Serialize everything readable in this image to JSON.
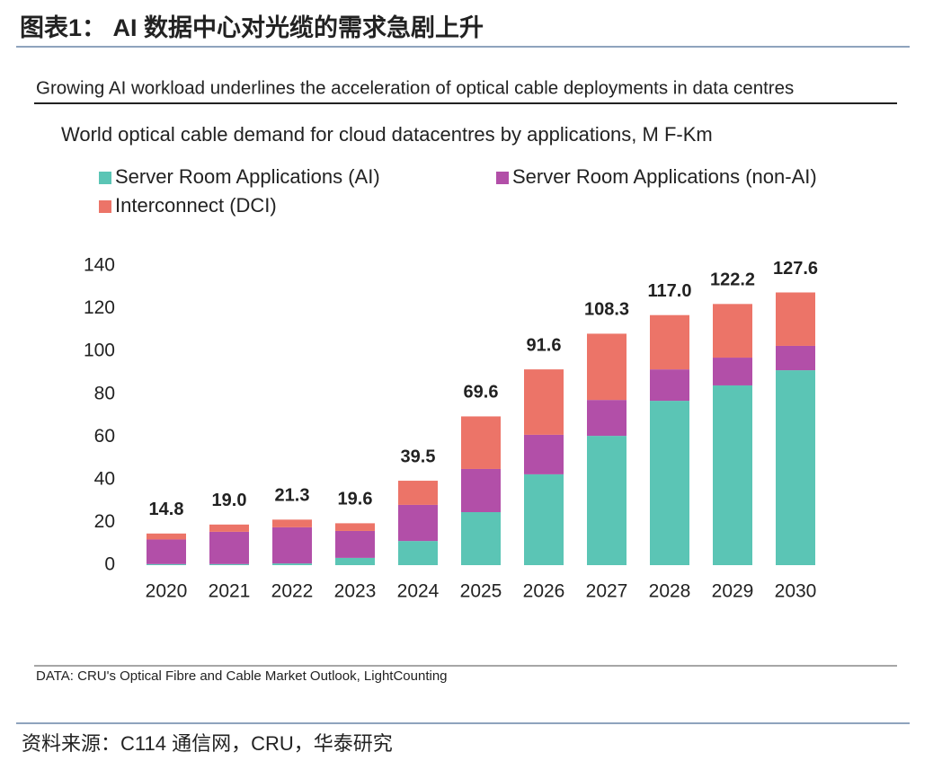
{
  "header": {
    "title": "图表1：  AI 数据中心对光缆的需求急剧上升"
  },
  "chart_data": {
    "type": "bar",
    "stacked": true,
    "headline": "Growing AI workload underlines the acceleration of optical cable deployments in data centres",
    "title": "World optical cable demand for cloud datacentres by applications, M F-Km",
    "categories": [
      "2020",
      "2021",
      "2022",
      "2023",
      "2024",
      "2025",
      "2026",
      "2027",
      "2028",
      "2029",
      "2030"
    ],
    "series": [
      {
        "name": "Server Room Applications (AI)",
        "color": "#5bc5b5",
        "values": [
          0.5,
          0.5,
          0.8,
          3.4,
          11.3,
          24.8,
          42.5,
          60.5,
          76.9,
          84.1,
          91.2
        ]
      },
      {
        "name": "Server Room Applications (non-AI)",
        "color": "#b24fa8",
        "values": [
          11.5,
          15.1,
          16.9,
          12.6,
          16.9,
          20.2,
          18.5,
          16.8,
          14.7,
          13.0,
          11.4
        ]
      },
      {
        "name": "Interconnect (DCI)",
        "color": "#ec7468",
        "values": [
          2.8,
          3.4,
          3.6,
          3.6,
          11.3,
          24.6,
          30.6,
          31.0,
          25.4,
          25.1,
          25.0
        ]
      }
    ],
    "totals": [
      14.8,
      19.0,
      21.3,
      19.6,
      39.5,
      69.6,
      91.6,
      108.3,
      117.0,
      122.2,
      127.6
    ],
    "total_labels": [
      "14.8",
      "19.0",
      "21.3",
      "19.6",
      "39.5",
      "69.6",
      "91.6",
      "108.3",
      "117.0",
      "122.2",
      "127.6"
    ],
    "ylim": [
      0,
      140
    ],
    "yticks": [
      0,
      20,
      40,
      60,
      80,
      100,
      120,
      140
    ],
    "grid": false,
    "source": "DATA: CRU's Optical Fibre and Cable Market Outlook, LightCounting"
  },
  "footer": {
    "source": "资料来源：C114 通信网，CRU，华泰研究"
  }
}
